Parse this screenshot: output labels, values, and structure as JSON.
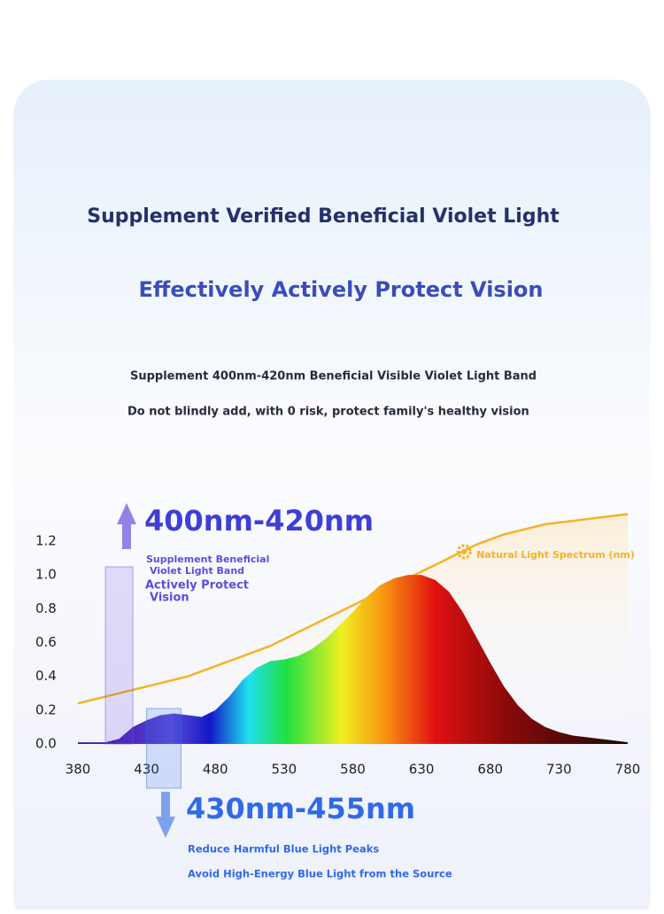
{
  "header": {
    "title": "Supplement Verified Beneficial Violet Light",
    "subtitle": "Effectively Actively Protect Vision",
    "lines": [
      "Supplement 400nm-420nm Beneficial Visible Violet Light Band",
      "Do not blindly add, with 0 risk, protect family's healthy vision"
    ]
  },
  "chart_data": {
    "type": "area",
    "x": [
      380,
      390,
      400,
      410,
      420,
      430,
      440,
      450,
      460,
      470,
      480,
      490,
      500,
      510,
      520,
      530,
      540,
      550,
      560,
      570,
      580,
      590,
      600,
      610,
      620,
      630,
      640,
      650,
      660,
      670,
      680,
      690,
      700,
      710,
      720,
      730,
      740,
      750,
      760,
      770,
      780
    ],
    "series": [
      {
        "name": "Natural Light Spectrum (nm)",
        "color": "#f5b324",
        "values": [
          0.24,
          0.26,
          0.28,
          0.3,
          0.32,
          0.34,
          0.36,
          0.38,
          0.4,
          0.43,
          0.46,
          0.49,
          0.52,
          0.55,
          0.58,
          0.62,
          0.66,
          0.7,
          0.74,
          0.78,
          0.82,
          0.86,
          0.9,
          0.94,
          0.98,
          1.02,
          1.06,
          1.1,
          1.14,
          1.18,
          1.21,
          1.24,
          1.26,
          1.28,
          1.3,
          1.31,
          1.32,
          1.33,
          1.34,
          1.35,
          1.36
        ]
      },
      {
        "color": "spectrum",
        "values": [
          0.01,
          0.01,
          0.01,
          0.03,
          0.1,
          0.14,
          0.17,
          0.18,
          0.17,
          0.16,
          0.2,
          0.28,
          0.38,
          0.45,
          0.49,
          0.5,
          0.52,
          0.56,
          0.62,
          0.7,
          0.78,
          0.87,
          0.94,
          0.98,
          1.0,
          1.0,
          0.97,
          0.9,
          0.78,
          0.63,
          0.48,
          0.34,
          0.23,
          0.15,
          0.1,
          0.07,
          0.05,
          0.04,
          0.03,
          0.02,
          0.01
        ]
      }
    ],
    "xlim": [
      380,
      780
    ],
    "xticks": [
      380,
      430,
      480,
      530,
      580,
      630,
      680,
      730,
      780
    ],
    "ylim": [
      0,
      1.4
    ],
    "yticks": [
      {
        "value": 0,
        "label": "0.0"
      },
      0.2,
      0.4,
      0.6,
      0.8,
      {
        "value": 1,
        "label": "1.0"
      },
      1.2
    ],
    "bands": [
      {
        "label": "400nm-420nm",
        "range": [
          400,
          420
        ],
        "direction": "up",
        "color": "#6a4fe0",
        "notes": [
          [
            "Supplement Beneficial",
            "Violet Light Band"
          ],
          [
            "Actively Protect",
            "Vision"
          ]
        ]
      },
      {
        "label": "430nm-455nm",
        "range": [
          430,
          455
        ],
        "direction": "down",
        "color": "#2f6ae8",
        "notes": [
          [
            "Reduce Harmful Blue Light Peaks"
          ],
          [
            "Avoid High-Energy Blue Light from the Source"
          ]
        ]
      }
    ]
  }
}
